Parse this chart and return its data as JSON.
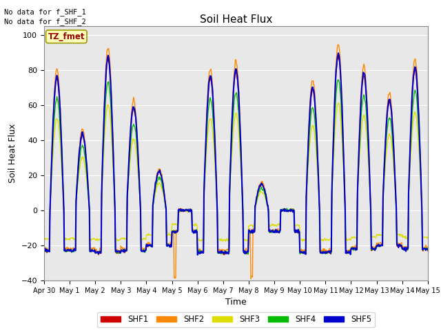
{
  "title": "Soil Heat Flux",
  "xlabel": "Time",
  "ylabel": "Soil Heat Flux",
  "ylim": [
    -40,
    105
  ],
  "yticks": [
    -40,
    -20,
    0,
    20,
    40,
    60,
    80,
    100
  ],
  "no_data_text_line1": "No data for f_SHF_1",
  "no_data_text_line2": "No data for f_SHF_2",
  "tz_label": "TZ_fmet",
  "legend_labels": [
    "SHF1",
    "SHF2",
    "SHF3",
    "SHF4",
    "SHF5"
  ],
  "line_colors": [
    "#cc0000",
    "#ff8800",
    "#dddd00",
    "#00bb00",
    "#0000cc"
  ],
  "line_widths": [
    1.0,
    1.0,
    1.0,
    1.0,
    1.5
  ],
  "background_color": "#e8e8e8",
  "fig_background": "#ffffff",
  "x_start_days": 0,
  "x_end_days": 15,
  "xtick_positions": [
    0,
    1,
    2,
    3,
    4,
    5,
    6,
    7,
    8,
    9,
    10,
    11,
    12,
    13,
    14,
    15
  ],
  "xtick_labels": [
    "Apr 30",
    "May 1",
    "May 2",
    "May 3",
    "May 4",
    "May 5",
    "May 6",
    "May 7",
    "May 8",
    "May 9",
    "May 10",
    "May 11",
    "May 12",
    "May 13",
    "May 14",
    "May 15"
  ],
  "day_peak_amplitudes": [
    75,
    43,
    86,
    58,
    22,
    0,
    75,
    79,
    15,
    0,
    69,
    88,
    77,
    62,
    80
  ],
  "day_night_depths": [
    23,
    23,
    24,
    23,
    20,
    12,
    24,
    24,
    12,
    12,
    24,
    24,
    22,
    20,
    22
  ],
  "shf2_extra_peaks": [
    0,
    0,
    2,
    0,
    0,
    27,
    0,
    0,
    27,
    0,
    0,
    0,
    0,
    0,
    0
  ],
  "shf3_scale": 0.7,
  "shf4_scale": 0.85
}
